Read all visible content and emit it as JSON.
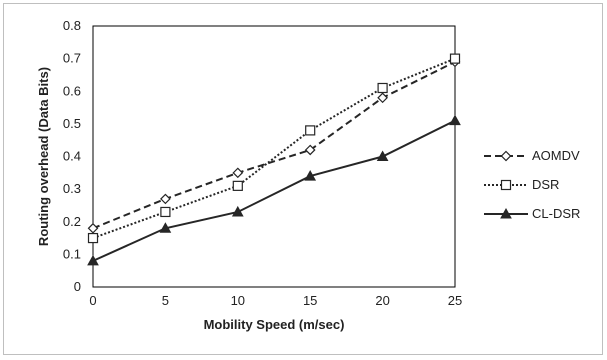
{
  "chart_data": {
    "type": "line",
    "title": "",
    "xlabel": "Mobility Speed (m/sec)",
    "ylabel": "Routing overhead (Data Bits)",
    "x": [
      0,
      5,
      10,
      15,
      20,
      25
    ],
    "xlim": [
      0,
      25
    ],
    "ylim": [
      0,
      0.8
    ],
    "xticks": [
      "0",
      "5",
      "10",
      "15",
      "20",
      "25"
    ],
    "yticks": [
      "0",
      "0.1",
      "0.2",
      "0.3",
      "0.4",
      "0.5",
      "0.6",
      "0.7",
      "0.8"
    ],
    "grid": false,
    "legend_position": "right",
    "series": [
      {
        "name": "AOMDV",
        "values": [
          0.18,
          0.27,
          0.35,
          0.42,
          0.58,
          0.69
        ],
        "line_style": "dashed",
        "marker": "diamond-open",
        "color": "#262626"
      },
      {
        "name": "DSR",
        "values": [
          0.15,
          0.23,
          0.31,
          0.48,
          0.61,
          0.7
        ],
        "line_style": "dotted",
        "marker": "square-open",
        "color": "#262626"
      },
      {
        "name": "CL-DSR",
        "values": [
          0.08,
          0.18,
          0.23,
          0.34,
          0.4,
          0.51
        ],
        "line_style": "solid",
        "marker": "triangle-filled",
        "color": "#262626"
      }
    ]
  }
}
